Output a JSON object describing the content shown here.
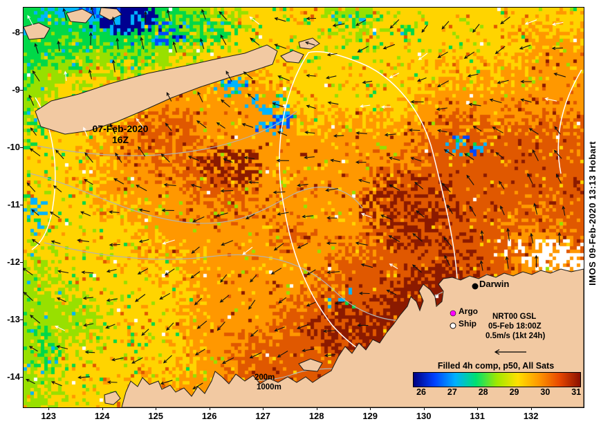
{
  "map": {
    "date_label_line1": "07-Feb-2020",
    "date_label_line2": "16Z",
    "city_label": "Darwin",
    "depth_labels": [
      "200m",
      "1000m"
    ]
  },
  "legend": {
    "argo_label": "Argo",
    "ship_label": "Ship",
    "product_line1": "NRT00 GSL",
    "product_line2": "05-Feb 18:00Z",
    "product_line3": "0.5m/s (1kt 24h)"
  },
  "colorbar": {
    "title": "Filled 4h comp, p50, All Sats",
    "tick_labels": [
      "26",
      "27",
      "28",
      "29",
      "30",
      "31"
    ],
    "gradient_colors": [
      "#000080",
      "#0040ff",
      "#00b0ff",
      "#00e070",
      "#a0e800",
      "#ffe000",
      "#ff9800",
      "#e84800",
      "#8b1000"
    ]
  },
  "axes": {
    "lat_tick_labels": [
      "-8",
      "-9",
      "-10",
      "-11",
      "-12",
      "-13",
      "-14"
    ],
    "lon_tick_labels": [
      "123",
      "124",
      "125",
      "126",
      "127",
      "128",
      "129",
      "130",
      "131",
      "132"
    ]
  },
  "watermark": "IMOS 09-Feb-2020 13:13 Hobart",
  "colors": {
    "land": "#f2c9a2",
    "argo_marker": "#ff00ff",
    "ship_marker": "#ffffff",
    "darwin_marker": "#000000",
    "sea_palette": [
      "#000090",
      "#0048ff",
      "#00b4ff",
      "#00d848",
      "#98e000",
      "#ffd400",
      "#ff9800",
      "#e05800",
      "#8b1a00"
    ]
  }
}
